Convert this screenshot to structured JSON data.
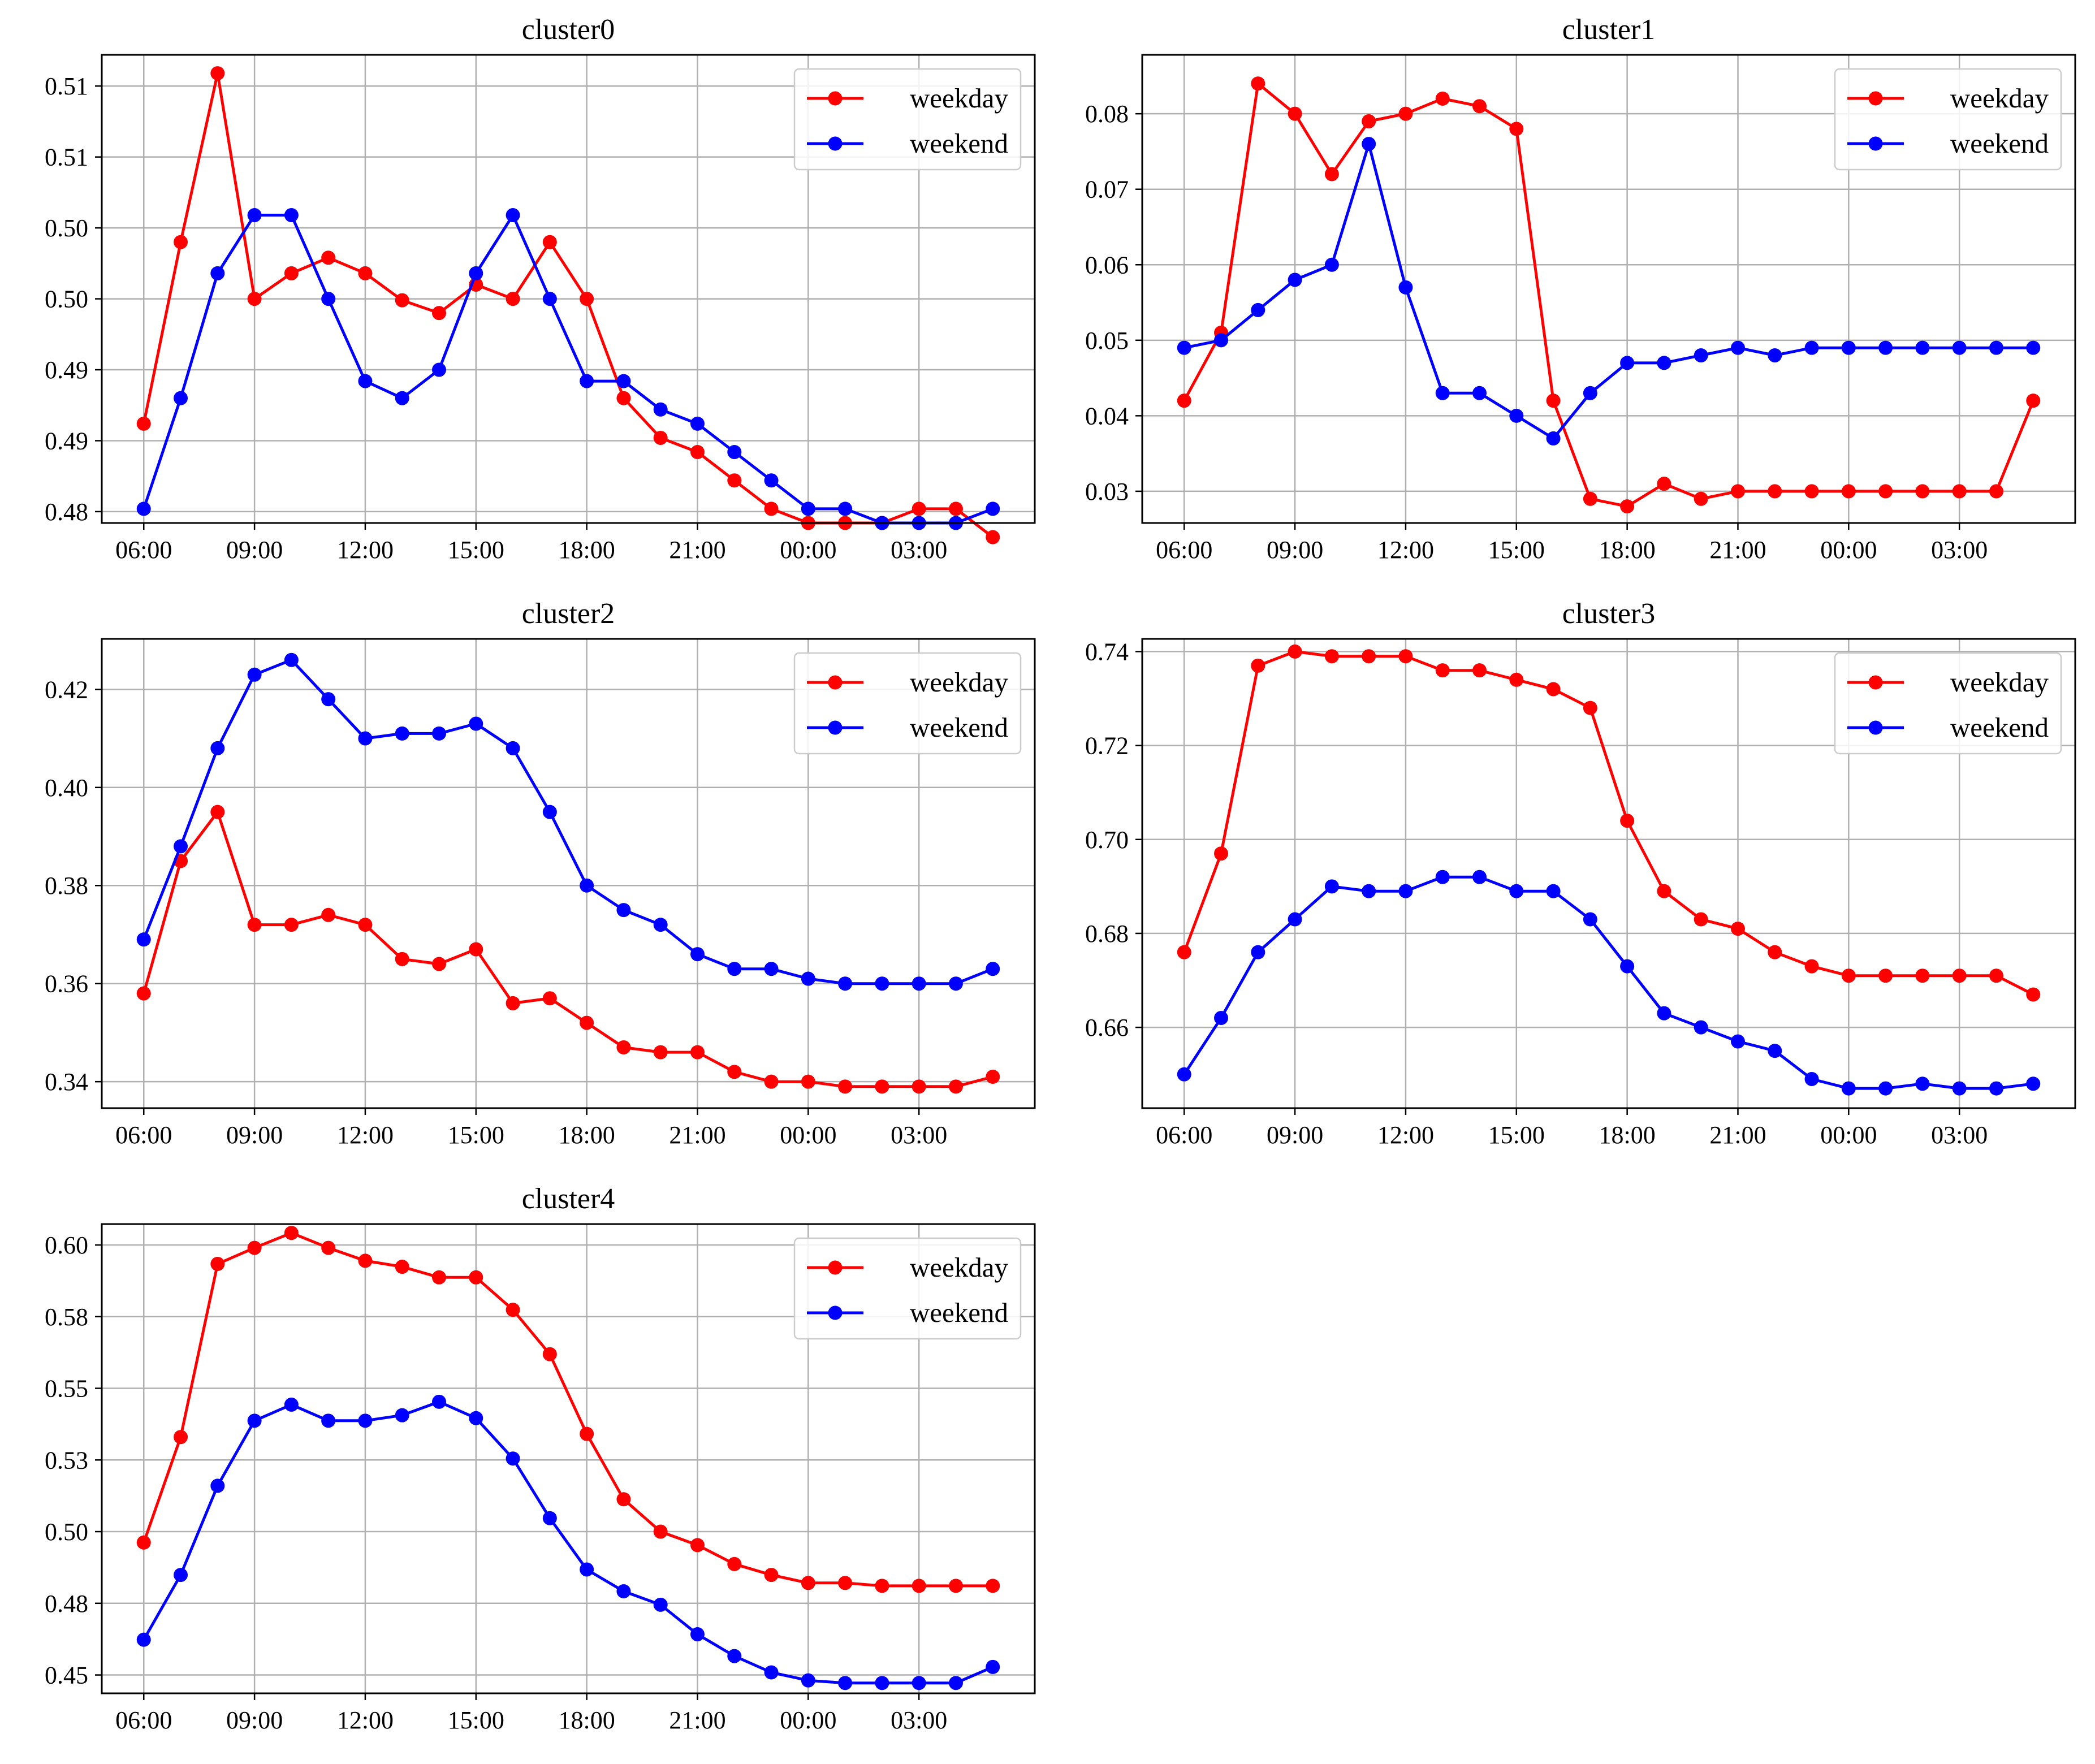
{
  "chart_data": [
    {
      "type": "line",
      "title": "cluster0",
      "x": [
        "06:00",
        "07:00",
        "08:00",
        "09:00",
        "10:00",
        "11:00",
        "12:00",
        "13:00",
        "14:00",
        "15:00",
        "16:00",
        "17:00",
        "18:00",
        "19:00",
        "20:00",
        "21:00",
        "22:00",
        "23:00",
        "00:00",
        "01:00",
        "02:00",
        "03:00",
        "04:00",
        "05:00"
      ],
      "xticks": [
        "06:00",
        "09:00",
        "12:00",
        "15:00",
        "18:00",
        "21:00",
        "00:00",
        "03:00"
      ],
      "ylim": [
        0.4817,
        0.5147
      ],
      "yticks": [
        0.4825,
        0.4875,
        0.4925,
        0.4975,
        0.5025,
        0.5075,
        0.5125
      ],
      "yticklabels": [
        "0.48",
        "0.49",
        "0.49",
        "0.50",
        "0.50",
        "0.51",
        "0.51"
      ],
      "series": [
        {
          "name": "weekday",
          "color": "#ff0000",
          "values": [
            0.4887,
            0.5015,
            0.5134,
            0.4975,
            0.4993,
            0.5004,
            0.4993,
            0.4974,
            0.4965,
            0.4985,
            0.4975,
            0.5015,
            0.4975,
            0.4905,
            0.4877,
            0.4867,
            0.4847,
            0.4827,
            0.4817,
            0.4817,
            0.4817,
            0.4827,
            0.4827,
            0.4807
          ]
        },
        {
          "name": "weekend",
          "color": "#0000ff",
          "values": [
            0.4827,
            0.4905,
            0.4993,
            0.5034,
            0.5034,
            0.4975,
            0.4917,
            0.4905,
            0.4925,
            0.4993,
            0.5034,
            0.4975,
            0.4917,
            0.4917,
            0.4897,
            0.4887,
            0.4867,
            0.4847,
            0.4827,
            0.4827,
            0.4817,
            0.4817,
            0.4817,
            0.4827
          ]
        }
      ],
      "legend": {
        "location": "top-right",
        "entries": [
          "weekday",
          "weekend"
        ]
      },
      "grid": true
    },
    {
      "type": "line",
      "title": "cluster1",
      "x": [
        "06:00",
        "07:00",
        "08:00",
        "09:00",
        "10:00",
        "11:00",
        "12:00",
        "13:00",
        "14:00",
        "15:00",
        "16:00",
        "17:00",
        "18:00",
        "19:00",
        "20:00",
        "21:00",
        "22:00",
        "23:00",
        "00:00",
        "01:00",
        "02:00",
        "03:00",
        "04:00",
        "05:00"
      ],
      "xticks": [
        "06:00",
        "09:00",
        "12:00",
        "15:00",
        "18:00",
        "21:00",
        "00:00",
        "03:00"
      ],
      "ylim": [
        0.0258,
        0.0878
      ],
      "yticks": [
        0.03,
        0.04,
        0.05,
        0.06,
        0.07,
        0.08
      ],
      "yticklabels": [
        "0.03",
        "0.04",
        "0.05",
        "0.06",
        "0.07",
        "0.08"
      ],
      "series": [
        {
          "name": "weekday",
          "color": "#ff0000",
          "values": [
            0.042,
            0.051,
            0.084,
            0.08,
            0.072,
            0.079,
            0.08,
            0.082,
            0.081,
            0.078,
            0.042,
            0.029,
            0.028,
            0.031,
            0.029,
            0.03,
            0.03,
            0.03,
            0.03,
            0.03,
            0.03,
            0.03,
            0.03,
            0.042
          ]
        },
        {
          "name": "weekend",
          "color": "#0000ff",
          "values": [
            0.049,
            0.05,
            0.054,
            0.058,
            0.06,
            0.076,
            0.057,
            0.043,
            0.043,
            0.04,
            0.037,
            0.043,
            0.047,
            0.047,
            0.048,
            0.049,
            0.048,
            0.049,
            0.049,
            0.049,
            0.049,
            0.049,
            0.049,
            0.049
          ]
        }
      ],
      "legend": {
        "location": "top-right",
        "entries": [
          "weekday",
          "weekend"
        ]
      },
      "grid": true
    },
    {
      "type": "line",
      "title": "cluster2",
      "x": [
        "06:00",
        "07:00",
        "08:00",
        "09:00",
        "10:00",
        "11:00",
        "12:00",
        "13:00",
        "14:00",
        "15:00",
        "16:00",
        "17:00",
        "18:00",
        "19:00",
        "20:00",
        "21:00",
        "22:00",
        "23:00",
        "00:00",
        "01:00",
        "02:00",
        "03:00",
        "04:00",
        "05:00"
      ],
      "xticks": [
        "06:00",
        "09:00",
        "12:00",
        "15:00",
        "18:00",
        "21:00",
        "00:00",
        "03:00"
      ],
      "ylim": [
        0.3346,
        0.4303
      ],
      "yticks": [
        0.34,
        0.36,
        0.38,
        0.4,
        0.42
      ],
      "yticklabels": [
        "0.34",
        "0.36",
        "0.38",
        "0.40",
        "0.42"
      ],
      "series": [
        {
          "name": "weekday",
          "color": "#ff0000",
          "values": [
            0.358,
            0.385,
            0.395,
            0.372,
            0.372,
            0.374,
            0.372,
            0.365,
            0.364,
            0.367,
            0.356,
            0.357,
            0.352,
            0.347,
            0.346,
            0.346,
            0.342,
            0.34,
            0.34,
            0.339,
            0.339,
            0.339,
            0.339,
            0.341
          ]
        },
        {
          "name": "weekend",
          "color": "#0000ff",
          "values": [
            0.369,
            0.388,
            0.408,
            0.423,
            0.426,
            0.418,
            0.41,
            0.411,
            0.411,
            0.413,
            0.408,
            0.395,
            0.38,
            0.375,
            0.372,
            0.366,
            0.363,
            0.363,
            0.361,
            0.36,
            0.36,
            0.36,
            0.36,
            0.363
          ]
        }
      ],
      "legend": {
        "location": "top-right",
        "entries": [
          "weekday",
          "weekend"
        ]
      },
      "grid": true
    },
    {
      "type": "line",
      "title": "cluster3",
      "x": [
        "06:00",
        "07:00",
        "08:00",
        "09:00",
        "10:00",
        "11:00",
        "12:00",
        "13:00",
        "14:00",
        "15:00",
        "16:00",
        "17:00",
        "18:00",
        "19:00",
        "20:00",
        "21:00",
        "22:00",
        "23:00",
        "00:00",
        "01:00",
        "02:00",
        "03:00",
        "04:00",
        "05:00"
      ],
      "xticks": [
        "06:00",
        "09:00",
        "12:00",
        "15:00",
        "18:00",
        "21:00",
        "00:00",
        "03:00"
      ],
      "ylim": [
        0.6428,
        0.7427
      ],
      "yticks": [
        0.66,
        0.68,
        0.7,
        0.72,
        0.74
      ],
      "yticklabels": [
        "0.66",
        "0.68",
        "0.70",
        "0.72",
        "0.74"
      ],
      "series": [
        {
          "name": "weekday",
          "color": "#ff0000",
          "values": [
            0.676,
            0.697,
            0.737,
            0.74,
            0.739,
            0.739,
            0.739,
            0.736,
            0.736,
            0.734,
            0.732,
            0.728,
            0.704,
            0.689,
            0.683,
            0.681,
            0.676,
            0.673,
            0.671,
            0.671,
            0.671,
            0.671,
            0.671,
            0.667
          ]
        },
        {
          "name": "weekend",
          "color": "#0000ff",
          "values": [
            0.65,
            0.662,
            0.676,
            0.683,
            0.69,
            0.689,
            0.689,
            0.692,
            0.692,
            0.689,
            0.689,
            0.683,
            0.673,
            0.663,
            0.66,
            0.657,
            0.655,
            0.649,
            0.647,
            0.647,
            0.648,
            0.647,
            0.647,
            0.648
          ]
        }
      ],
      "legend": {
        "location": "top-right",
        "entries": [
          "weekday",
          "weekend"
        ]
      },
      "grid": true
    },
    {
      "type": "line",
      "title": "cluster4",
      "x": [
        "06:00",
        "07:00",
        "08:00",
        "09:00",
        "10:00",
        "11:00",
        "12:00",
        "13:00",
        "14:00",
        "15:00",
        "16:00",
        "17:00",
        "18:00",
        "19:00",
        "20:00",
        "21:00",
        "22:00",
        "23:00",
        "00:00",
        "01:00",
        "02:00",
        "03:00",
        "04:00",
        "05:00"
      ],
      "xticks": [
        "06:00",
        "09:00",
        "12:00",
        "15:00",
        "18:00",
        "21:00",
        "00:00",
        "03:00"
      ],
      "ylim": [
        0.4436,
        0.6073
      ],
      "yticks": [
        0.45,
        0.475,
        0.5,
        0.525,
        0.55,
        0.575,
        0.6
      ],
      "yticklabels": [
        "0.45",
        "0.48",
        "0.50",
        "0.53",
        "0.55",
        "0.58",
        "0.60"
      ],
      "series": [
        {
          "name": "weekday",
          "color": "#ff0000",
          "values": [
            0.4962,
            0.533,
            0.5934,
            0.599,
            0.6042,
            0.599,
            0.5945,
            0.5924,
            0.5887,
            0.5887,
            0.5774,
            0.5619,
            0.5341,
            0.5113,
            0.5,
            0.4953,
            0.4887,
            0.4849,
            0.4821,
            0.4821,
            0.4811,
            0.4811,
            0.4811,
            0.4811
          ]
        },
        {
          "name": "weekend",
          "color": "#0000ff",
          "values": [
            0.4623,
            0.4849,
            0.516,
            0.5387,
            0.5443,
            0.5387,
            0.5387,
            0.5406,
            0.5453,
            0.5396,
            0.5255,
            0.5047,
            0.4868,
            0.4792,
            0.4745,
            0.4642,
            0.4566,
            0.4509,
            0.4481,
            0.4472,
            0.4472,
            0.4472,
            0.4472,
            0.4528
          ]
        }
      ],
      "legend": {
        "location": "top-right",
        "entries": [
          "weekday",
          "weekend"
        ]
      },
      "grid": true
    }
  ]
}
